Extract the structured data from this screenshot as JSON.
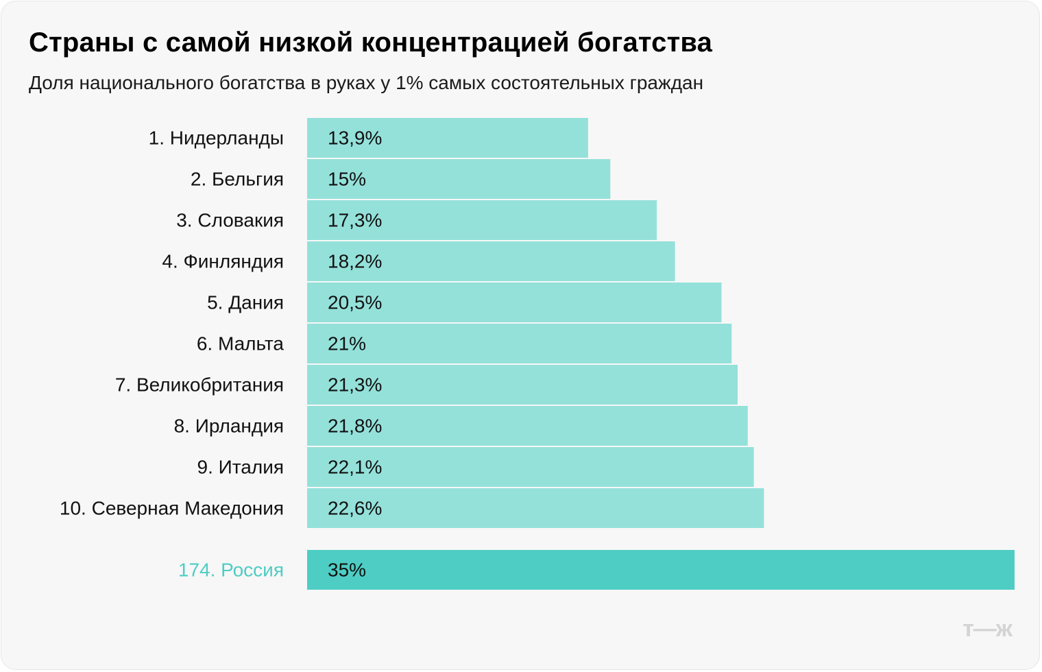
{
  "header": {
    "title": "Страны с самой низкой концентрацией богатства",
    "subtitle": "Доля национального богатства в руках у 1% самых состоятельных граждан"
  },
  "brand": {
    "logo": "т—ж"
  },
  "colors": {
    "bar": "#94e1da",
    "bar_highlight": "#4ecdc4",
    "label_highlight": "#4ecdc4",
    "background": "#f7f7f7"
  },
  "chart_data": {
    "type": "bar",
    "orientation": "horizontal",
    "title": "Страны с самой низкой концентрацией богатства",
    "subtitle": "Доля национального богатства в руках у 1% самых состоятельных граждан",
    "xlabel": "",
    "ylabel": "",
    "xlim": [
      0,
      35
    ],
    "grid": false,
    "legend": "none",
    "categories": [
      "1. Нидерланды",
      "2. Бельгия",
      "3. Словакия",
      "4. Финляндия",
      "5. Дания",
      "6. Мальта",
      "7. Великобритания",
      "8. Ирландия",
      "9. Италия",
      "10. Северная Македония",
      "174. Россия"
    ],
    "values": [
      13.9,
      15,
      17.3,
      18.2,
      20.5,
      21,
      21.3,
      21.8,
      22.1,
      22.6,
      35
    ],
    "value_labels": [
      "13,9%",
      "15%",
      "17,3%",
      "18,2%",
      "20,5%",
      "21%",
      "21,3%",
      "21,8%",
      "22,1%",
      "22,6%",
      "35%"
    ],
    "highlighted": [
      "174. Россия"
    ]
  }
}
